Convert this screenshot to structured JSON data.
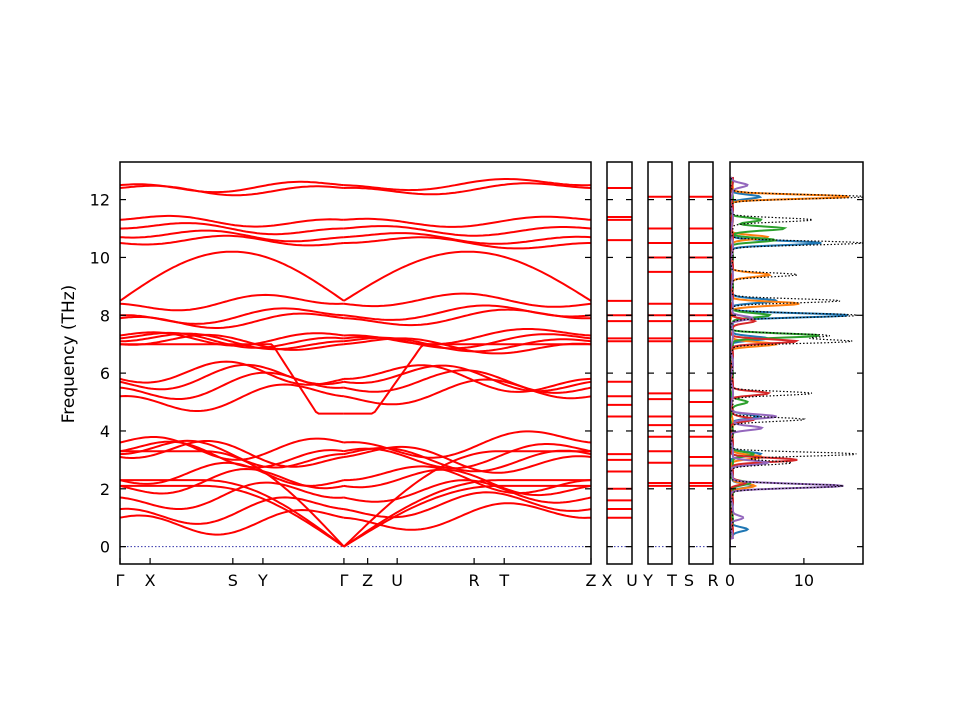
{
  "chart_data": {
    "type": "line",
    "title": "",
    "ylabel": "Frequency (THz)",
    "ylim": [
      -0.6,
      13.3
    ],
    "y_ticks": [
      "0",
      "2",
      "4",
      "6",
      "8",
      "10",
      "12"
    ],
    "line_color": "#ff0000",
    "zero_line_color": "#3333aa",
    "band_panels": [
      {
        "name": "main path",
        "x_tick_labels": [
          "Γ",
          "X",
          "S",
          "Y",
          "Γ",
          "Z",
          "U",
          "R",
          "T",
          "Z"
        ],
        "x_tick_positions": [
          0,
          0.52,
          1.95,
          2.47,
          3.87,
          4.28,
          4.79,
          6.12,
          6.64,
          8.14
        ],
        "segments": [
          [
            0,
            3.87
          ],
          [
            3.87,
            8.14
          ]
        ]
      },
      {
        "name": "segment X-U",
        "x_tick_labels": [
          "X",
          "U"
        ]
      },
      {
        "name": "segment Y-T",
        "x_tick_labels": [
          "Y",
          "T"
        ]
      },
      {
        "name": "segment S-R",
        "x_tick_labels": [
          "S",
          "R"
        ]
      }
    ],
    "band_levels_at_gamma": [
      0,
      0,
      0,
      1.0,
      1.3,
      1.7,
      2.1,
      2.3,
      3.1,
      3.2,
      3.3,
      3.6,
      4.6,
      5.2,
      5.5,
      5.7,
      5.8,
      7.0,
      7.1,
      7.2,
      7.3,
      7.9,
      8.0,
      8.4,
      8.6,
      10.5,
      10.7,
      11.0,
      11.3,
      12.4,
      12.5
    ],
    "flat_levels_XU": [
      1.0,
      1.3,
      1.6,
      2.0,
      2.6,
      3.0,
      3.2,
      4.5,
      4.9,
      5.2,
      5.7,
      7.1,
      7.2,
      7.8,
      8.0,
      8.5,
      10.6,
      11.3,
      11.4,
      12.4
    ],
    "flat_levels_YT": [
      2.1,
      2.2,
      2.9,
      3.3,
      3.8,
      4.2,
      4.5,
      5.1,
      5.3,
      7.1,
      7.2,
      7.8,
      8.0,
      8.4,
      9.5,
      10.0,
      10.5,
      11.0,
      12.1
    ],
    "flat_levels_SR": [
      2.1,
      2.2,
      2.8,
      3.1,
      3.8,
      4.2,
      4.5,
      5.0,
      5.4,
      7.1,
      7.2,
      7.8,
      8.0,
      8.4,
      9.5,
      10.0,
      10.5,
      11.0,
      12.1
    ],
    "dos_panel": {
      "xlim": [
        0,
        18
      ],
      "x_ticks": [
        "0",
        "10"
      ],
      "series": [
        {
          "color": "#1f77b4",
          "peaks": [
            [
              0.6,
              2.0
            ],
            [
              2.1,
              3.0
            ],
            [
              3.2,
              4.0
            ],
            [
              4.5,
              3.5
            ],
            [
              7.2,
              5.0
            ],
            [
              8.0,
              16.0
            ],
            [
              8.5,
              6.0
            ],
            [
              10.5,
              12.0
            ],
            [
              12.1,
              4.0
            ]
          ]
        },
        {
          "color": "#ff7f0e",
          "peaks": [
            [
              2.1,
              3.0
            ],
            [
              3.1,
              4.0
            ],
            [
              7.0,
              6.0
            ],
            [
              8.4,
              9.0
            ],
            [
              9.4,
              5.0
            ],
            [
              10.7,
              5.0
            ],
            [
              12.1,
              16.0
            ]
          ]
        },
        {
          "color": "#2ca02c",
          "peaks": [
            [
              2.2,
              2.5
            ],
            [
              3.2,
              3.0
            ],
            [
              5.0,
              2.0
            ],
            [
              7.3,
              12.0
            ],
            [
              8.0,
              5.0
            ],
            [
              10.6,
              6.0
            ],
            [
              11.0,
              7.0
            ],
            [
              11.3,
              4.0
            ]
          ]
        },
        {
          "color": "#d62728",
          "peaks": [
            [
              2.2,
              2.0
            ],
            [
              3.0,
              9.0
            ],
            [
              4.4,
              3.0
            ],
            [
              5.3,
              5.0
            ],
            [
              7.1,
              9.0
            ],
            [
              7.8,
              3.0
            ]
          ]
        },
        {
          "color": "#9467bd",
          "peaks": [
            [
              1.0,
              1.5
            ],
            [
              2.1,
              15.0
            ],
            [
              2.9,
              5.0
            ],
            [
              4.1,
              4.0
            ],
            [
              4.5,
              6.0
            ],
            [
              7.9,
              3.0
            ],
            [
              12.5,
              2.0
            ]
          ]
        },
        {
          "color": "#000000",
          "style": "dotted",
          "peaks": [
            [
              2.1,
              15.0
            ],
            [
              2.9,
              8.0
            ],
            [
              3.2,
              17.0
            ],
            [
              4.4,
              10.0
            ],
            [
              5.3,
              11.0
            ],
            [
              7.1,
              16.0
            ],
            [
              7.3,
              13.0
            ],
            [
              8.0,
              17.0
            ],
            [
              8.5,
              15.0
            ],
            [
              9.4,
              9.0
            ],
            [
              10.5,
              18.0
            ],
            [
              11.3,
              11.0
            ],
            [
              12.1,
              18.0
            ]
          ]
        }
      ]
    }
  }
}
